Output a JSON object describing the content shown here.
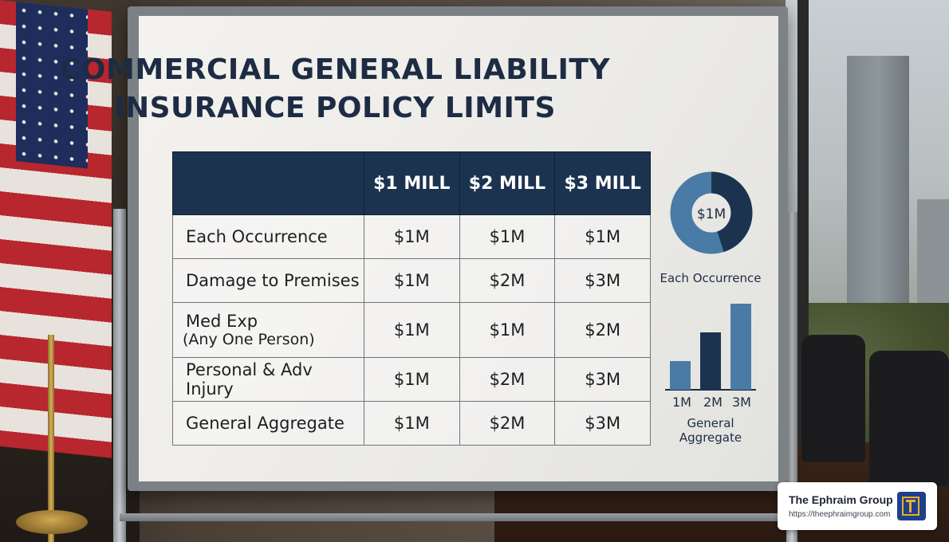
{
  "board": {
    "title_line1": "COMMERCIAL GENERAL LIABILITY",
    "title_line2": "INSURANCE POLICY LIMITS"
  },
  "table": {
    "columns": [
      "",
      "$1 MILL",
      "$2 MILL",
      "$3 MILL"
    ],
    "rows": [
      {
        "label": "Each Occurrence",
        "values": [
          "$1M",
          "$1M",
          "$1M"
        ]
      },
      {
        "label": "Damage to Premises",
        "values": [
          "$1M",
          "$2M",
          "$3M"
        ]
      },
      {
        "label": "Med Exp",
        "sublabel": "(Any One Person)",
        "values": [
          "$1M",
          "$1M",
          "$2M"
        ]
      },
      {
        "label": "Personal & Adv Injury",
        "values": [
          "$1M",
          "$2M",
          "$3M"
        ]
      },
      {
        "label": "General Aggregate",
        "values": [
          "$1M",
          "$2M",
          "$3M"
        ]
      }
    ]
  },
  "donut": {
    "center_label": "$1M",
    "caption": "Each Occurrence",
    "fraction_dark": 0.45,
    "colors": {
      "light": "#4a7ba6",
      "dark": "#1c3350"
    }
  },
  "bar_chart": {
    "categories": [
      "1M",
      "2M",
      "3M"
    ],
    "values": [
      1,
      2,
      3
    ],
    "caption": "General Aggregate",
    "colors": [
      "#4a7ba6",
      "#1c3350",
      "#4a7ba6"
    ]
  },
  "badge": {
    "name": "The Ephraim Group",
    "url": "https://theephraimgroup.com"
  },
  "colors": {
    "navy": "#1c3350",
    "title": "#1d2c44"
  }
}
